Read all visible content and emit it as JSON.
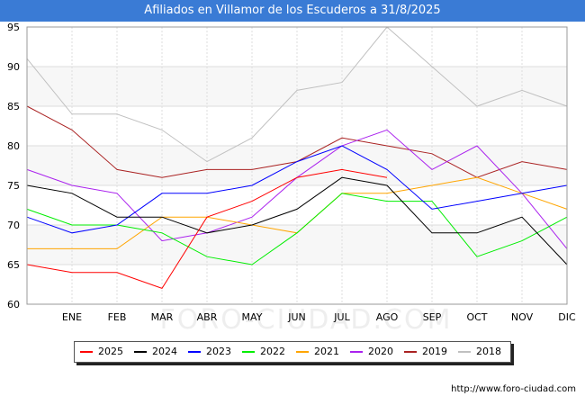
{
  "title": "Afiliados en Villamor de los Escuderos a 31/8/2025",
  "source": "http://www.foro-ciudad.com",
  "watermark": "FORO-CIUDAD.COM",
  "chart_data": {
    "type": "line",
    "title": "Afiliados en Villamor de los Escuderos a 31/8/2025",
    "xlabel": "",
    "ylabel": "",
    "ylim": [
      60,
      95
    ],
    "yticks": [
      60,
      65,
      70,
      75,
      80,
      85,
      90,
      95
    ],
    "grid": true,
    "legend_position": "bottom",
    "categories": [
      "",
      "ENE",
      "FEB",
      "MAR",
      "ABR",
      "MAY",
      "JUN",
      "JUL",
      "AGO",
      "SEP",
      "OCT",
      "NOV",
      "DIC"
    ],
    "series": [
      {
        "name": "2025",
        "color": "#ff0000",
        "values": [
          65,
          64,
          64,
          62,
          71,
          73,
          76,
          77,
          76,
          null,
          null,
          null,
          null
        ]
      },
      {
        "name": "2024",
        "color": "#000000",
        "values": [
          75,
          74,
          71,
          71,
          69,
          70,
          72,
          76,
          75,
          69,
          69,
          71,
          65
        ]
      },
      {
        "name": "2023",
        "color": "#0000ff",
        "values": [
          71,
          69,
          70,
          74,
          74,
          75,
          78,
          80,
          77,
          72,
          73,
          74,
          75
        ]
      },
      {
        "name": "2022",
        "color": "#00ee00",
        "values": [
          72,
          70,
          70,
          69,
          66,
          65,
          69,
          74,
          73,
          73,
          66,
          68,
          71
        ]
      },
      {
        "name": "2021",
        "color": "#ffa500",
        "values": [
          67,
          67,
          67,
          71,
          71,
          70,
          69,
          74,
          74,
          75,
          76,
          74,
          72
        ]
      },
      {
        "name": "2020",
        "color": "#aa22ee",
        "values": [
          77,
          75,
          74,
          68,
          69,
          71,
          76,
          80,
          82,
          77,
          80,
          74,
          67
        ]
      },
      {
        "name": "2019",
        "color": "#aa2222",
        "values": [
          85,
          82,
          77,
          76,
          77,
          77,
          78,
          81,
          80,
          79,
          76,
          78,
          77
        ]
      },
      {
        "name": "2018",
        "color": "#c0c0c0",
        "values": [
          91,
          84,
          84,
          82,
          78,
          81,
          87,
          88,
          95,
          90,
          85,
          87,
          85
        ]
      }
    ]
  }
}
